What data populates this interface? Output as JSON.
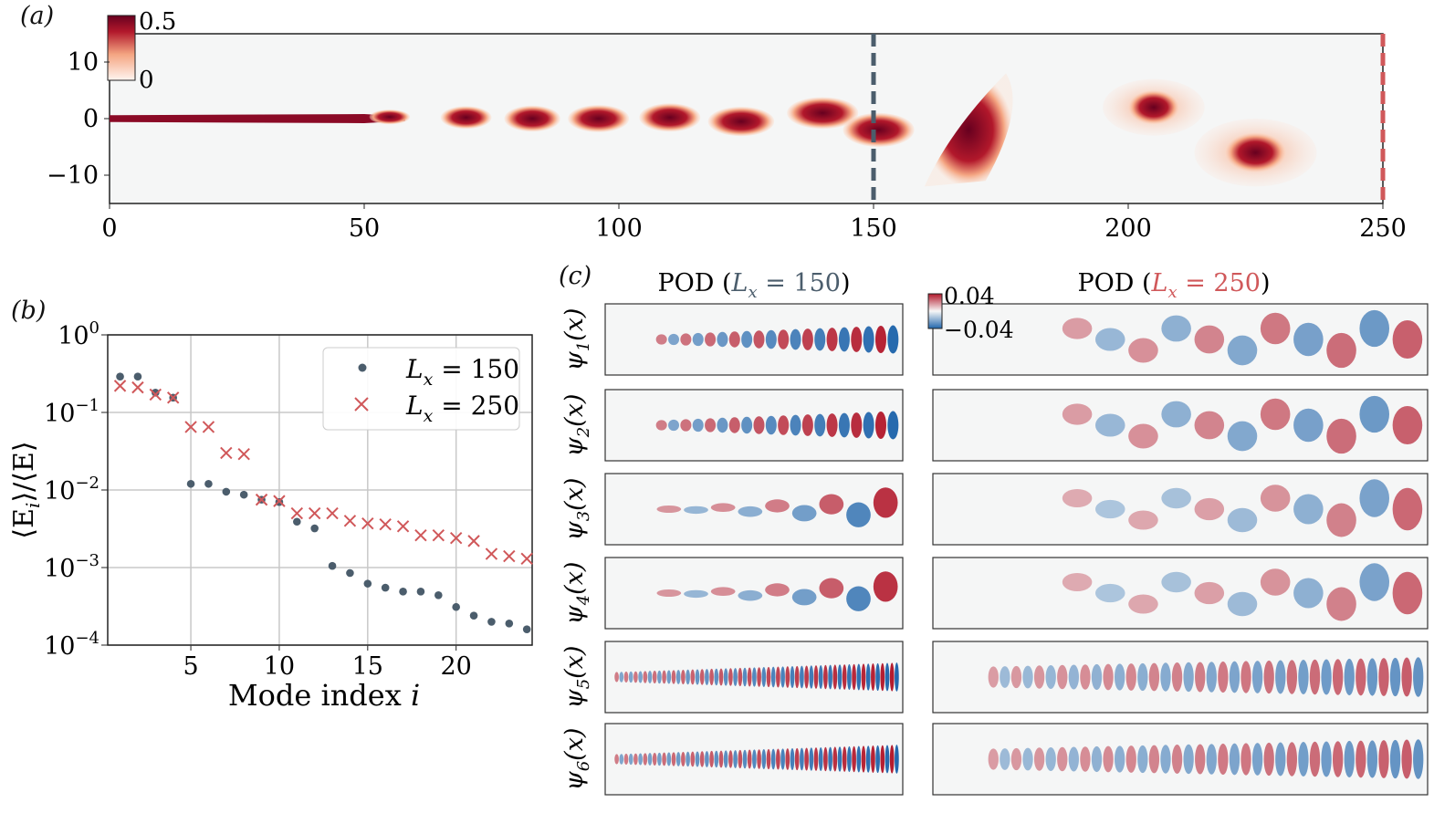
{
  "panel_labels": {
    "a": "(a)",
    "b": "(b)",
    "c": "(c)"
  },
  "colors": {
    "dark_red": "#67001f",
    "red": "#b2182b",
    "blue": "#2166ac",
    "slate": "#4b5d6c",
    "cross_red": "#d0585a",
    "bg": "#f5f6f6"
  },
  "chart_data": [
    {
      "id": "a",
      "type": "heatmap",
      "xlim": [
        0,
        250
      ],
      "ylim": [
        -15,
        15
      ],
      "xticks": [
        "0",
        "50",
        "100",
        "150",
        "250",
        "200"
      ],
      "xtick_values": [
        0,
        50,
        100,
        150,
        250,
        200
      ],
      "yticks": [
        "10",
        "0",
        "−10"
      ],
      "ytick_values": [
        10,
        0,
        -10
      ],
      "colorbar": {
        "max_label": "0.5",
        "min_label": "0",
        "range": [
          0,
          0.5
        ],
        "colormap": "white-to-dark-red"
      },
      "vertical_lines": [
        {
          "x": 150,
          "color": "#4b5d6c",
          "style": "dashed"
        },
        {
          "x": 250,
          "color": "#d0585a",
          "style": "dashed"
        }
      ]
    },
    {
      "id": "b",
      "type": "scatter",
      "xlabel": {
        "text": "Mode index ",
        "var": "i"
      },
      "ylabel": {
        "open": "⟨E",
        "sub": "i",
        "close": "⟩/⟨E⟩"
      },
      "xlim": [
        0.3,
        24.3
      ],
      "ylim": [
        0.0001,
        1
      ],
      "yscale": "log",
      "grid": true,
      "xticks": [
        "5",
        "10",
        "15",
        "20"
      ],
      "xtick_values": [
        5,
        10,
        15,
        20
      ],
      "yticks": [
        {
          "base": "10",
          "exp": "0",
          "value": 1
        },
        {
          "base": "10",
          "exp": "−1",
          "value": 0.1
        },
        {
          "base": "10",
          "exp": "−2",
          "value": 0.01
        },
        {
          "base": "10",
          "exp": "−3",
          "value": 0.001
        },
        {
          "base": "10",
          "exp": "−4",
          "value": 0.0001
        }
      ],
      "legend_position": "top-right",
      "x": [
        1,
        2,
        3,
        4,
        5,
        6,
        7,
        8,
        9,
        10,
        11,
        12,
        13,
        14,
        15,
        16,
        17,
        18,
        19,
        20,
        21,
        22,
        23,
        24
      ],
      "series": [
        {
          "name_var": "L",
          "name_sub": "x",
          "name_rest": " = 150",
          "marker": "dot",
          "color": "#4b5d6c",
          "values": [
            0.29,
            0.29,
            0.18,
            0.155,
            0.012,
            0.012,
            0.0095,
            0.0087,
            0.0075,
            0.007,
            0.0039,
            0.0032,
            0.00105,
            0.00085,
            0.00062,
            0.00055,
            0.00049,
            0.00049,
            0.00044,
            0.00031,
            0.00024,
            0.0002,
            0.00019,
            0.00016
          ]
        },
        {
          "name_var": "L",
          "name_sub": "x",
          "name_rest": " = 250",
          "marker": "x",
          "color": "#d0585a",
          "values": [
            0.22,
            0.21,
            0.17,
            0.155,
            0.065,
            0.065,
            0.03,
            0.029,
            0.0075,
            0.0072,
            0.005,
            0.005,
            0.005,
            0.004,
            0.0037,
            0.0036,
            0.0034,
            0.0026,
            0.0026,
            0.0024,
            0.0022,
            0.0015,
            0.0014,
            0.0013
          ]
        }
      ]
    },
    {
      "id": "c",
      "type": "heatmap",
      "columns": [
        {
          "pre": "POD (",
          "var": "L",
          "sub": "x",
          "rest": " = 150",
          "post": ")",
          "color": "#4b5d6c"
        },
        {
          "pre": "POD (",
          "var": "L",
          "sub": "x",
          "rest": " = 250",
          "post": ")",
          "color": "#d0585a"
        }
      ],
      "rows": [
        {
          "psi": "ψ",
          "sub": "1",
          "arg": "(x)"
        },
        {
          "psi": "ψ",
          "sub": "2",
          "arg": "(x)"
        },
        {
          "psi": "ψ",
          "sub": "3",
          "arg": "(x)"
        },
        {
          "psi": "ψ",
          "sub": "4",
          "arg": "(x)"
        },
        {
          "psi": "ψ",
          "sub": "5",
          "arg": "(x)"
        },
        {
          "psi": "ψ",
          "sub": "6",
          "arg": "(x)"
        }
      ],
      "colorbar": {
        "max_label": "0.04",
        "min_label": "−0.04",
        "range": [
          -0.04,
          0.04
        ],
        "colormap": "blue-white-red"
      }
    }
  ]
}
